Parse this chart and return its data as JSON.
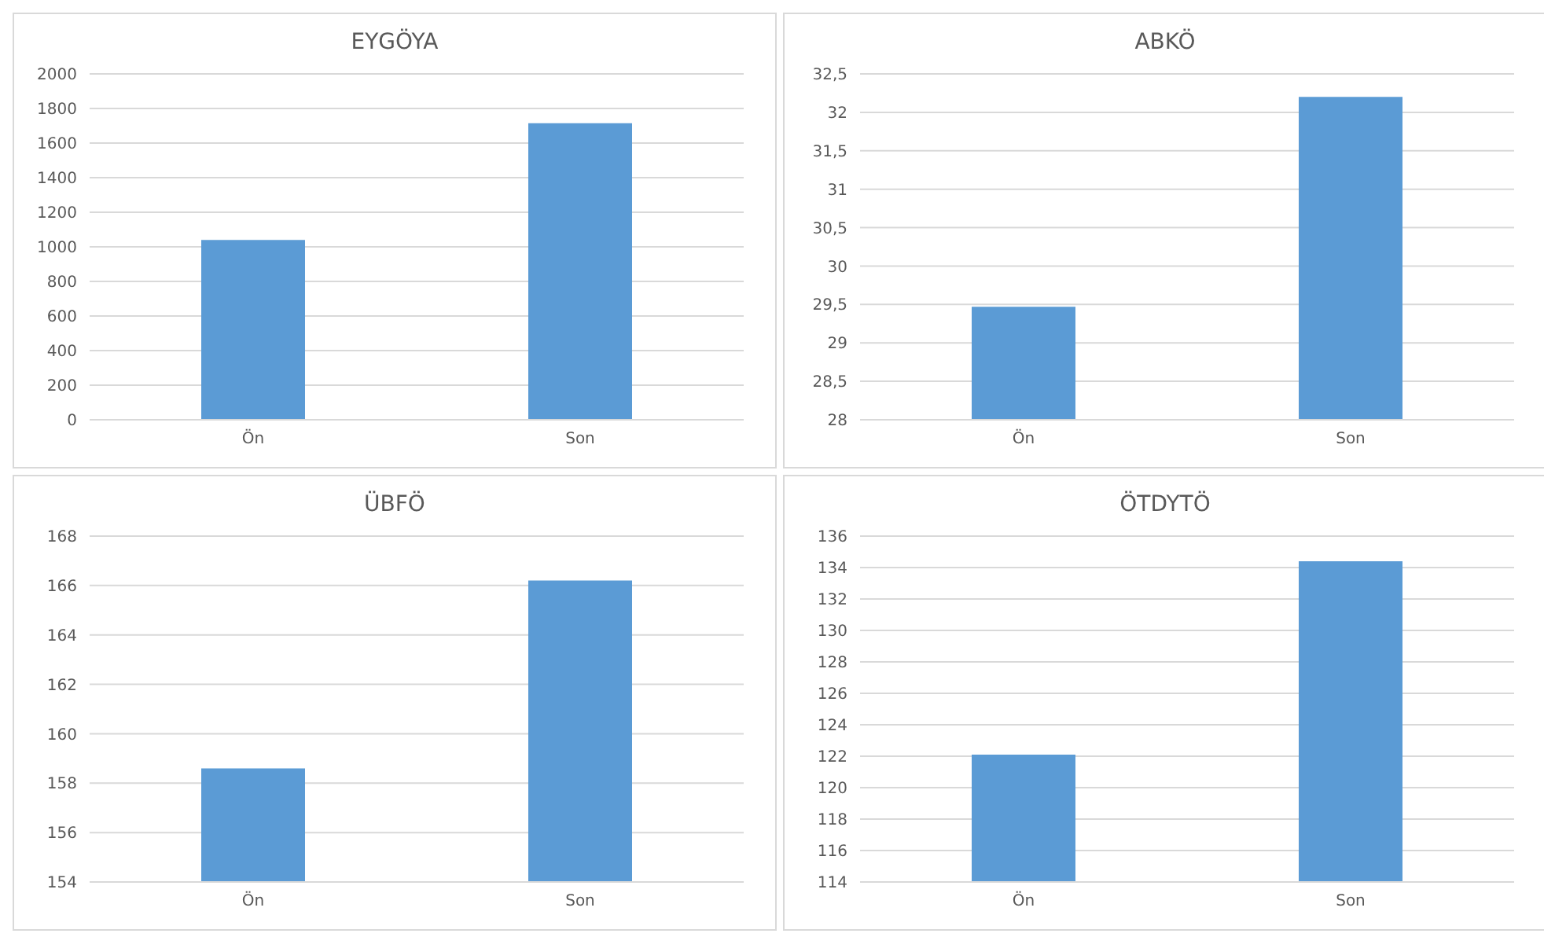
{
  "chart_data": [
    {
      "type": "bar",
      "title": "EYGÖYA",
      "categories": [
        "Ön",
        "Son"
      ],
      "values": [
        1040,
        1715
      ],
      "color": "#5b9bd5",
      "ylim": [
        0,
        2000
      ],
      "yticks": [
        0,
        200,
        400,
        600,
        800,
        1000,
        1200,
        1400,
        1600,
        1800,
        2000
      ],
      "grid": "y"
    },
    {
      "type": "bar",
      "title": "ABKÖ",
      "categories": [
        "Ön",
        "Son"
      ],
      "values": [
        29.47,
        32.2
      ],
      "color": "#5b9bd5",
      "ylim": [
        28,
        32.5
      ],
      "yticks": [
        28,
        {
          "value": 28.5,
          "label": "28,5"
        },
        29,
        {
          "value": 29.5,
          "label": "29,5"
        },
        30,
        {
          "value": 30.5,
          "label": "30,5"
        },
        31,
        {
          "value": 31.5,
          "label": "31,5"
        },
        32,
        {
          "value": 32.5,
          "label": "32,5"
        }
      ],
      "grid": "y"
    },
    {
      "type": "bar",
      "title": "ÜBFÖ",
      "categories": [
        "Ön",
        "Son"
      ],
      "values": [
        158.6,
        166.2
      ],
      "color": "#5b9bd5",
      "ylim": [
        154,
        168
      ],
      "yticks": [
        154,
        156,
        158,
        160,
        162,
        164,
        166,
        168
      ],
      "grid": "y"
    },
    {
      "type": "bar",
      "title": "ÖTDYTÖ",
      "categories": [
        "Ön",
        "Son"
      ],
      "values": [
        122.1,
        134.4
      ],
      "color": "#5b9bd5",
      "ylim": [
        114,
        136
      ],
      "yticks": [
        114,
        116,
        118,
        120,
        122,
        124,
        126,
        128,
        130,
        132,
        134,
        136
      ],
      "grid": "y"
    }
  ]
}
